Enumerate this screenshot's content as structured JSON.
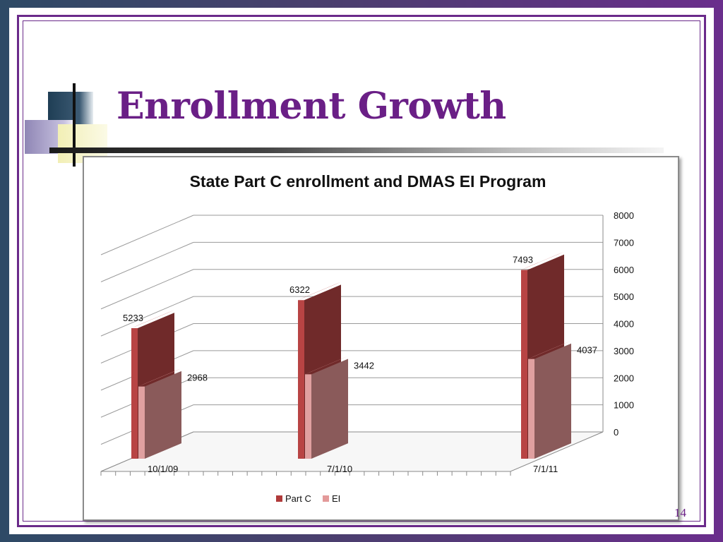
{
  "slide": {
    "title": "Enrollment Growth",
    "page_number": "14"
  },
  "colors": {
    "title": "#6a1f86",
    "part_c_front": "#702a2a",
    "part_c_side": "#b84444",
    "ei_front": "#8a5a5a",
    "ei_side": "#e0a0a0",
    "legend_part_c": "#b03a3a",
    "legend_ei": "#e39a9a"
  },
  "chart_data": {
    "type": "bar",
    "title": "State Part C enrollment and DMAS EI Program",
    "categories": [
      "10/1/09",
      "7/1/10",
      "7/1/11"
    ],
    "series": [
      {
        "name": "Part C",
        "values": [
          5233,
          6322,
          7493
        ]
      },
      {
        "name": "EI",
        "values": [
          2968,
          3442,
          4037
        ]
      }
    ],
    "ylim": [
      0,
      8000
    ],
    "yticks": [
      "0",
      "1000",
      "2000",
      "3000",
      "4000",
      "5000",
      "6000",
      "7000",
      "8000"
    ],
    "grid": true,
    "legend_position": "bottom",
    "style": "3d"
  }
}
